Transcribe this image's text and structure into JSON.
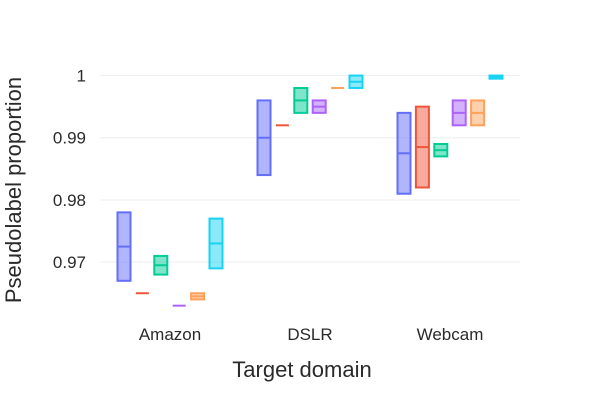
{
  "chart_data": {
    "type": "box",
    "title": "",
    "xlabel": "Target domain",
    "ylabel": "Pseudolabel proportion",
    "ylim": [
      0.9615,
      1.0025
    ],
    "yticks": [
      {
        "value": 0.97,
        "label": "0.97"
      },
      {
        "value": 0.98,
        "label": "0.98"
      },
      {
        "value": 0.99,
        "label": "0.99"
      },
      {
        "value": 1.0,
        "label": "1"
      }
    ],
    "grid": true,
    "legend": "none",
    "categories": [
      "Amazon",
      "DSLR",
      "Webcam"
    ],
    "series": [
      {
        "color": "#636efa",
        "boxes": [
          {
            "category": "Amazon",
            "q1": 0.967,
            "median": 0.9725,
            "q3": 0.978
          },
          {
            "category": "DSLR",
            "q1": 0.984,
            "median": 0.99,
            "q3": 0.996
          },
          {
            "category": "Webcam",
            "q1": 0.981,
            "median": 0.9875,
            "q3": 0.994
          }
        ]
      },
      {
        "color": "#ef553b",
        "boxes": [
          {
            "category": "Amazon",
            "q1": 0.965,
            "median": 0.965,
            "q3": 0.965
          },
          {
            "category": "DSLR",
            "q1": 0.992,
            "median": 0.992,
            "q3": 0.992
          },
          {
            "category": "Webcam",
            "q1": 0.982,
            "median": 0.9885,
            "q3": 0.995
          }
        ]
      },
      {
        "color": "#00cc96",
        "boxes": [
          {
            "category": "Amazon",
            "q1": 0.968,
            "median": 0.9695,
            "q3": 0.971
          },
          {
            "category": "DSLR",
            "q1": 0.994,
            "median": 0.996,
            "q3": 0.998
          },
          {
            "category": "Webcam",
            "q1": 0.987,
            "median": 0.988,
            "q3": 0.989
          }
        ]
      },
      {
        "color": "#ab63fa",
        "boxes": [
          {
            "category": "Amazon",
            "q1": 0.963,
            "median": 0.963,
            "q3": 0.963
          },
          {
            "category": "DSLR",
            "q1": 0.994,
            "median": 0.995,
            "q3": 0.996
          },
          {
            "category": "Webcam",
            "q1": 0.992,
            "median": 0.994,
            "q3": 0.996
          }
        ]
      },
      {
        "color": "#ffa15a",
        "boxes": [
          {
            "category": "Amazon",
            "q1": 0.964,
            "median": 0.9645,
            "q3": 0.965
          },
          {
            "category": "DSLR",
            "q1": 0.998,
            "median": 0.998,
            "q3": 0.998
          },
          {
            "category": "Webcam",
            "q1": 0.992,
            "median": 0.994,
            "q3": 0.996
          }
        ]
      },
      {
        "color": "#19d3f3",
        "boxes": [
          {
            "category": "Amazon",
            "q1": 0.969,
            "median": 0.973,
            "q3": 0.977
          },
          {
            "category": "DSLR",
            "q1": 0.998,
            "median": 0.999,
            "q3": 1.0
          },
          {
            "category": "Webcam",
            "q1": 0.9995,
            "median": 0.99975,
            "q3": 1.0
          }
        ]
      }
    ]
  }
}
